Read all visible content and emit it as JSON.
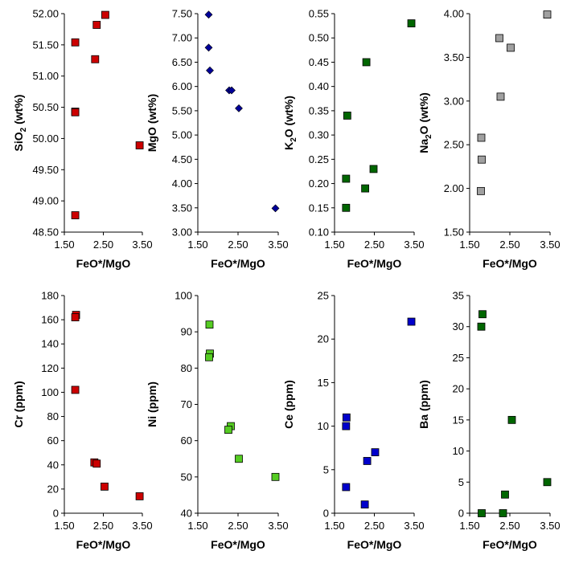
{
  "chart_data": [
    {
      "type": "scatter",
      "xlabel": "FeO*/MgO",
      "ylabel": "SiO2 (wt%)",
      "ylabel_parts": [
        "SiO",
        "2",
        " (wt%)"
      ],
      "xlim": [
        1.5,
        3.5
      ],
      "ylim": [
        48.5,
        52.0
      ],
      "xticks": [
        "1.50",
        "2.50",
        "3.50"
      ],
      "yticks": [
        "48.50",
        "49.00",
        "49.50",
        "50.00",
        "50.50",
        "51.00",
        "51.50",
        "52.00"
      ],
      "marker": "square",
      "color": "#cc0000",
      "points": [
        {
          "x": 1.78,
          "y": 51.54
        },
        {
          "x": 1.78,
          "y": 50.43
        },
        {
          "x": 1.78,
          "y": 50.42
        },
        {
          "x": 1.78,
          "y": 48.77
        },
        {
          "x": 2.33,
          "y": 51.82
        },
        {
          "x": 2.55,
          "y": 51.98
        },
        {
          "x": 2.29,
          "y": 51.27
        },
        {
          "x": 3.43,
          "y": 49.89
        }
      ]
    },
    {
      "type": "scatter",
      "xlabel": "FeO*/MgO",
      "ylabel": "MgO (wt%)",
      "ylabel_parts": [
        "MgO (wt%)"
      ],
      "xlim": [
        1.5,
        3.5
      ],
      "ylim": [
        3.0,
        7.5
      ],
      "xticks": [
        "1.50",
        "2.50",
        "3.50"
      ],
      "yticks": [
        "3.00",
        "3.50",
        "4.00",
        "4.50",
        "5.00",
        "5.50",
        "6.00",
        "6.50",
        "7.00",
        "7.50"
      ],
      "marker": "diamond",
      "color": "#000099",
      "points": [
        {
          "x": 1.77,
          "y": 7.48
        },
        {
          "x": 1.77,
          "y": 6.8
        },
        {
          "x": 1.8,
          "y": 6.33
        },
        {
          "x": 2.28,
          "y": 5.92
        },
        {
          "x": 2.34,
          "y": 5.92
        },
        {
          "x": 2.52,
          "y": 5.55
        },
        {
          "x": 3.43,
          "y": 3.49
        }
      ]
    },
    {
      "type": "scatter",
      "xlabel": "FeO*/MgO",
      "ylabel": "K2O (wt%)",
      "ylabel_parts": [
        "K",
        "2",
        "O (wt%)"
      ],
      "xlim": [
        1.5,
        3.5
      ],
      "ylim": [
        0.1,
        0.55
      ],
      "xticks": [
        "1.50",
        "2.50",
        "3.50"
      ],
      "yticks": [
        "0.10",
        "0.15",
        "0.20",
        "0.25",
        "0.30",
        "0.35",
        "0.40",
        "0.45",
        "0.50",
        "0.55"
      ],
      "marker": "square",
      "color": "#006600",
      "points": [
        {
          "x": 1.79,
          "y": 0.21
        },
        {
          "x": 1.79,
          "y": 0.15
        },
        {
          "x": 1.82,
          "y": 0.34
        },
        {
          "x": 2.3,
          "y": 0.45
        },
        {
          "x": 2.27,
          "y": 0.19
        },
        {
          "x": 2.48,
          "y": 0.23
        },
        {
          "x": 3.43,
          "y": 0.53
        }
      ]
    },
    {
      "type": "scatter",
      "xlabel": "FeO*/MgO",
      "ylabel": "Na2O (wt%)",
      "ylabel_parts": [
        "Na",
        "2",
        "O (wt%)"
      ],
      "xlim": [
        1.5,
        3.5
      ],
      "ylim": [
        1.5,
        4.0
      ],
      "xticks": [
        "1.50",
        "2.50",
        "3.50"
      ],
      "yticks": [
        "1.50",
        "2.00",
        "2.50",
        "3.00",
        "3.50",
        "4.00"
      ],
      "marker": "square",
      "color": "#a0a0a0",
      "points": [
        {
          "x": 1.79,
          "y": 2.58
        },
        {
          "x": 1.8,
          "y": 2.33
        },
        {
          "x": 1.78,
          "y": 1.97
        },
        {
          "x": 2.24,
          "y": 3.72
        },
        {
          "x": 2.52,
          "y": 3.61
        },
        {
          "x": 2.27,
          "y": 3.05
        },
        {
          "x": 3.43,
          "y": 3.99
        }
      ]
    },
    {
      "type": "scatter",
      "xlabel": "FeO*/MgO",
      "ylabel": "Cr (ppm)",
      "ylabel_parts": [
        "Cr (ppm)"
      ],
      "xlim": [
        1.5,
        3.5
      ],
      "ylim": [
        0,
        180
      ],
      "xticks": [
        "1.50",
        "2.50",
        "3.50"
      ],
      "yticks": [
        "0",
        "20",
        "40",
        "60",
        "80",
        "100",
        "120",
        "140",
        "160",
        "180"
      ],
      "marker": "square",
      "color": "#cc0000",
      "points": [
        {
          "x": 1.8,
          "y": 164
        },
        {
          "x": 1.78,
          "y": 162
        },
        {
          "x": 1.78,
          "y": 102
        },
        {
          "x": 2.27,
          "y": 42
        },
        {
          "x": 2.33,
          "y": 41
        },
        {
          "x": 2.53,
          "y": 22
        },
        {
          "x": 3.43,
          "y": 14
        }
      ]
    },
    {
      "type": "scatter",
      "xlabel": "FeO*/MgO",
      "ylabel": "Ni (ppm)",
      "ylabel_parts": [
        "Ni (ppm)"
      ],
      "xlim": [
        1.5,
        3.5
      ],
      "ylim": [
        40,
        100
      ],
      "xticks": [
        "1.50",
        "2.50",
        "3.50"
      ],
      "yticks": [
        "40",
        "50",
        "60",
        "70",
        "80",
        "90",
        "100"
      ],
      "marker": "square",
      "color": "#55cc22",
      "points": [
        {
          "x": 1.79,
          "y": 92
        },
        {
          "x": 1.8,
          "y": 84
        },
        {
          "x": 1.78,
          "y": 83
        },
        {
          "x": 2.32,
          "y": 64
        },
        {
          "x": 2.26,
          "y": 63
        },
        {
          "x": 2.52,
          "y": 55
        },
        {
          "x": 3.43,
          "y": 50
        }
      ]
    },
    {
      "type": "scatter",
      "xlabel": "FeO*/MgO",
      "ylabel": "Ce (ppm)",
      "ylabel_parts": [
        "Ce (ppm)"
      ],
      "xlim": [
        1.5,
        3.5
      ],
      "ylim": [
        0,
        25
      ],
      "xticks": [
        "1.50",
        "2.50",
        "3.50"
      ],
      "yticks": [
        "0",
        "5",
        "10",
        "15",
        "20",
        "25"
      ],
      "marker": "square",
      "color": "#0000cc",
      "points": [
        {
          "x": 1.8,
          "y": 11
        },
        {
          "x": 1.79,
          "y": 10
        },
        {
          "x": 1.79,
          "y": 3
        },
        {
          "x": 2.32,
          "y": 6
        },
        {
          "x": 2.52,
          "y": 7
        },
        {
          "x": 2.26,
          "y": 1
        },
        {
          "x": 3.43,
          "y": 22
        }
      ]
    },
    {
      "type": "scatter",
      "xlabel": "FeO*/MgO",
      "ylabel": "Ba (ppm)",
      "ylabel_parts": [
        "Ba (ppm)"
      ],
      "xlim": [
        1.5,
        3.5
      ],
      "ylim": [
        0,
        35
      ],
      "xticks": [
        "1.50",
        "2.50",
        "3.50"
      ],
      "yticks": [
        "0",
        "5",
        "10",
        "15",
        "20",
        "25",
        "30",
        "35"
      ],
      "marker": "square",
      "color": "#006600",
      "points": [
        {
          "x": 1.82,
          "y": 32
        },
        {
          "x": 1.79,
          "y": 30
        },
        {
          "x": 1.8,
          "y": 0
        },
        {
          "x": 2.33,
          "y": 0
        },
        {
          "x": 2.38,
          "y": 3
        },
        {
          "x": 2.55,
          "y": 15
        },
        {
          "x": 3.43,
          "y": 5
        }
      ]
    }
  ]
}
